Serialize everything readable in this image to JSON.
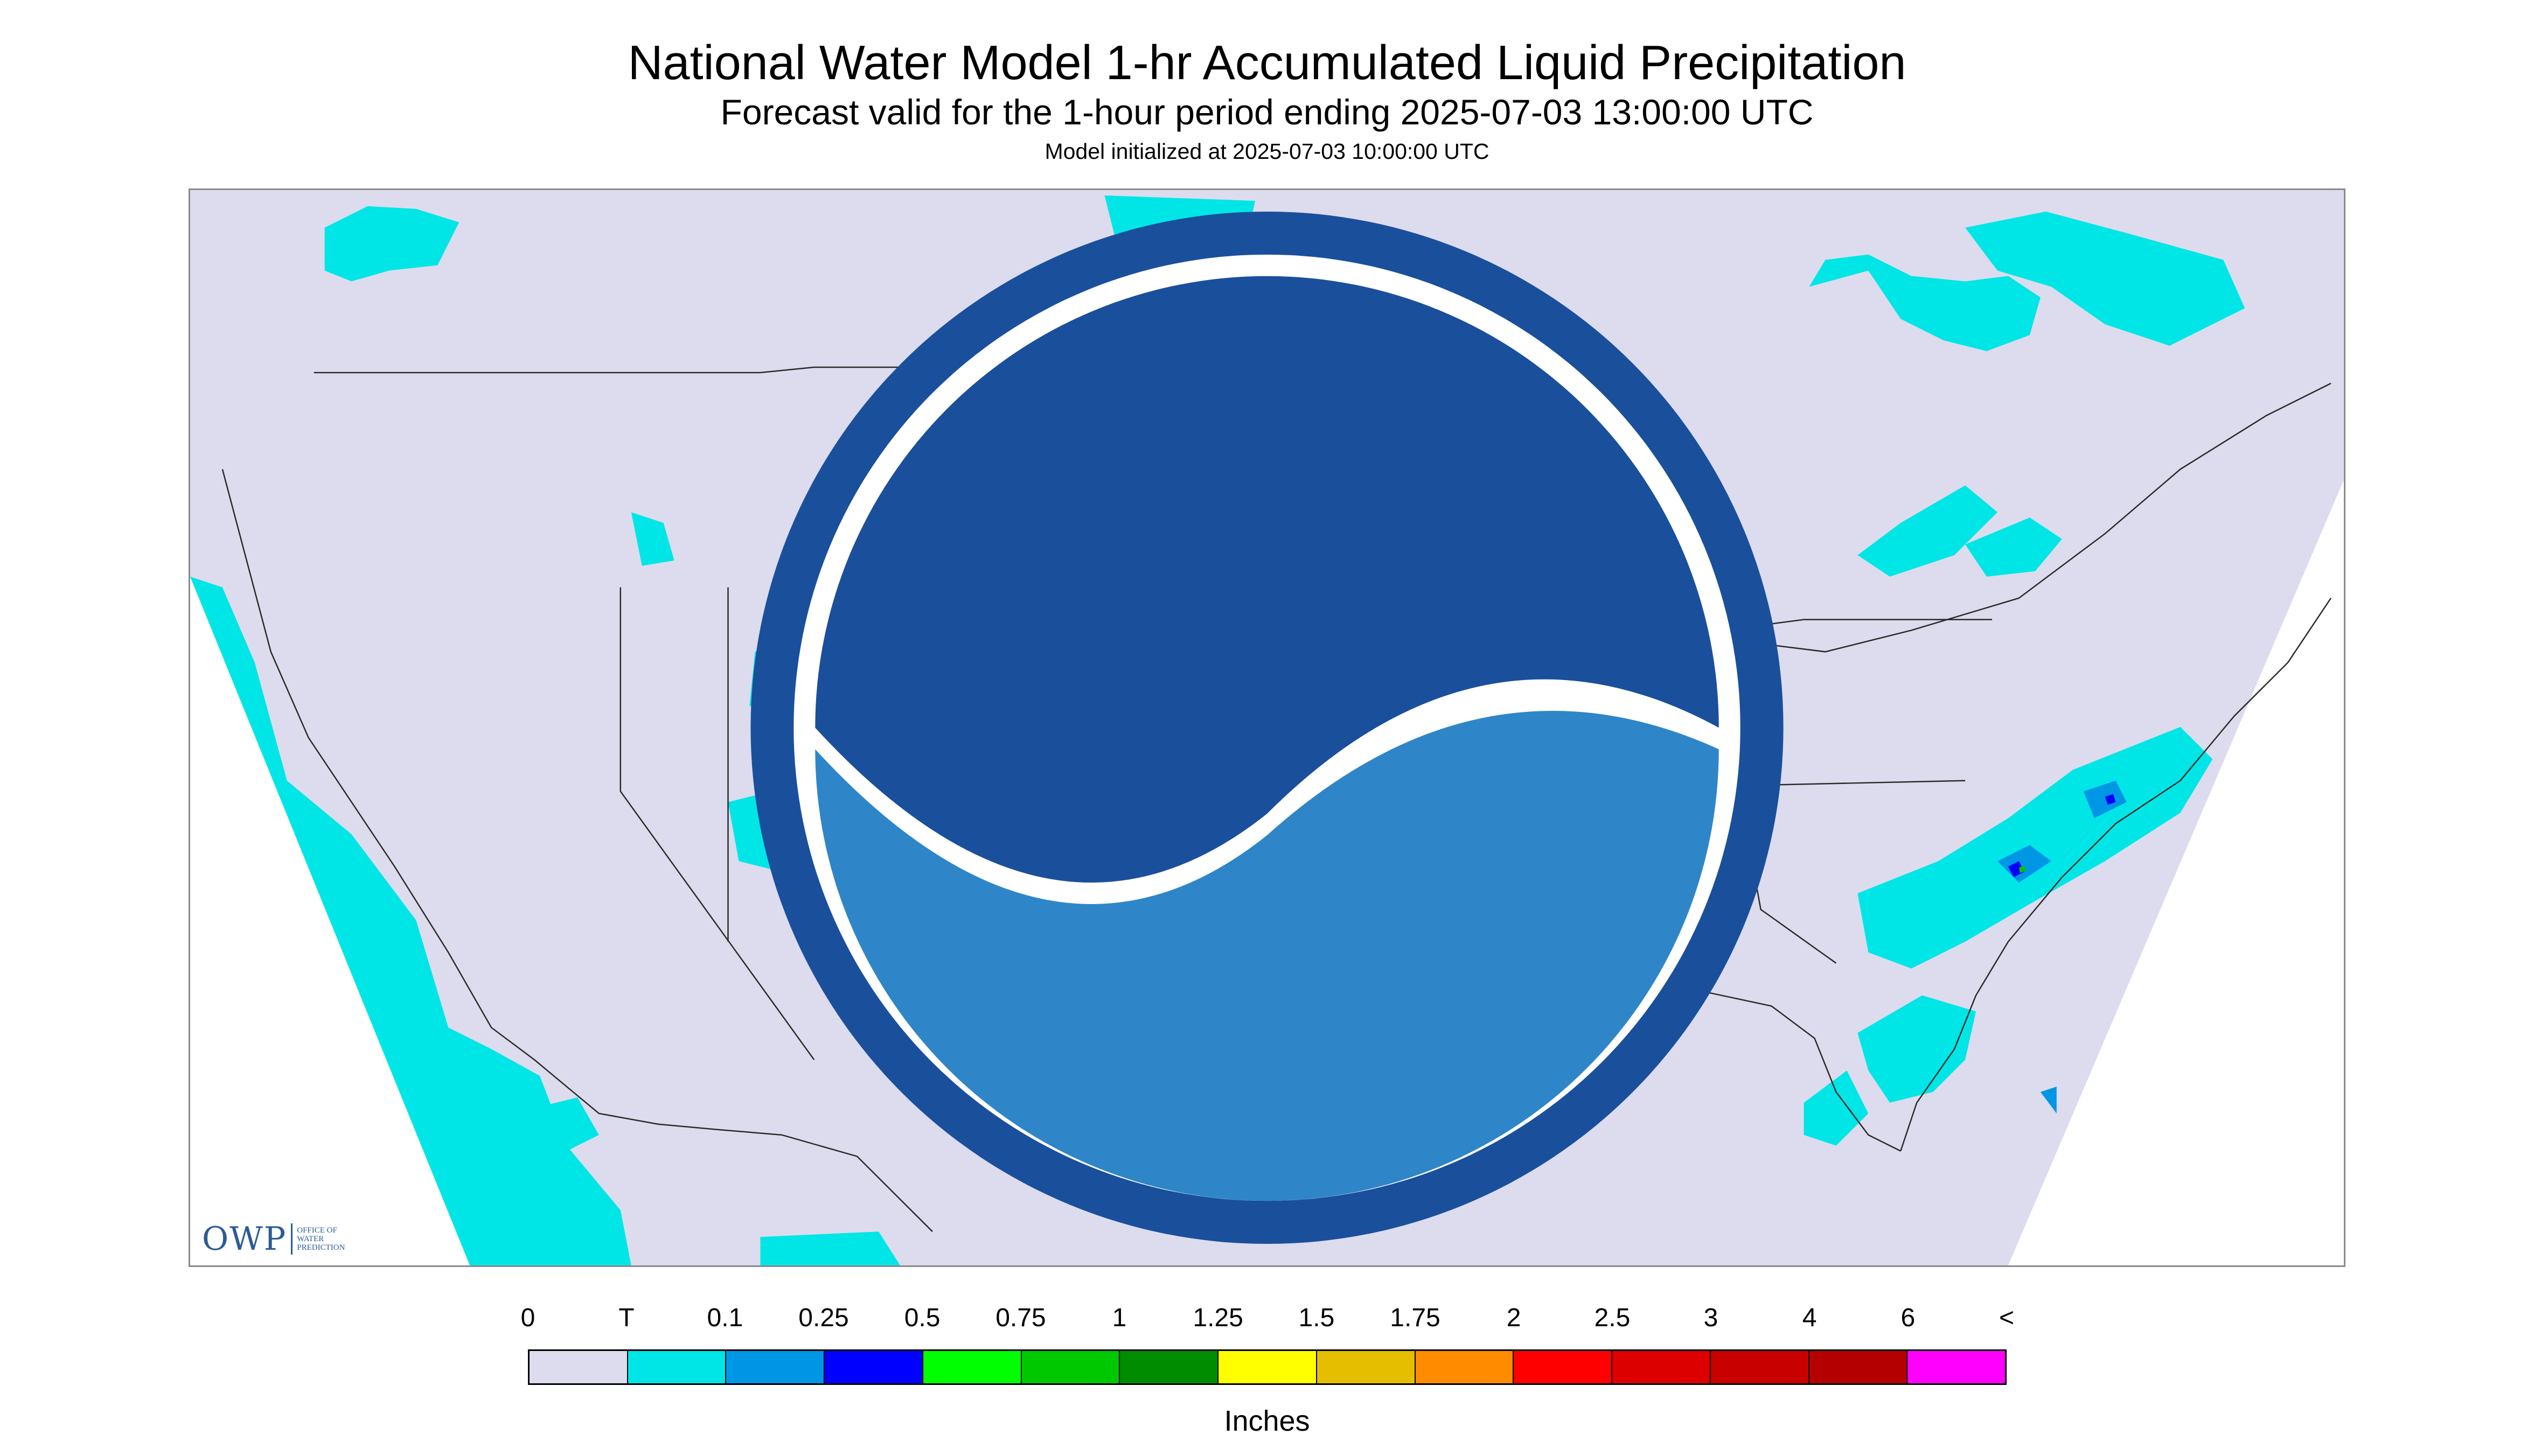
{
  "header": {
    "title": "National Water Model 1-hr Accumulated Liquid Precipitation",
    "subtitle": "Forecast valid for the 1-hour period ending 2025-07-03 13:00:00 UTC",
    "init": "Model initialized at 2025-07-03 10:00:00 UTC"
  },
  "logos": {
    "owp_main": "OWP",
    "owp_sub": [
      "OFFICE OF",
      "WATER",
      "PREDICTION"
    ],
    "noaa": "NOAA"
  },
  "colors": {
    "background": "#dcdcee",
    "outside_domain": "#ffffff",
    "state_lines": "#2a2a2a",
    "trace": "#00e6e6",
    "light": "#0096e6"
  },
  "legend": {
    "labels": [
      "0",
      "T",
      "0.1",
      "0.25",
      "0.5",
      "0.75",
      "1",
      "1.25",
      "1.5",
      "1.75",
      "2",
      "2.5",
      "3",
      "4",
      "6",
      "<"
    ],
    "colors": [
      "#dcdcee",
      "#00e6e6",
      "#0096e6",
      "#0000ff",
      "#00ff00",
      "#00c800",
      "#008c00",
      "#ffff00",
      "#e6be00",
      "#ff8c00",
      "#ff0000",
      "#dc0000",
      "#c80000",
      "#b40000",
      "#ff00ff",
      "#9650c8"
    ],
    "units": "Inches"
  }
}
